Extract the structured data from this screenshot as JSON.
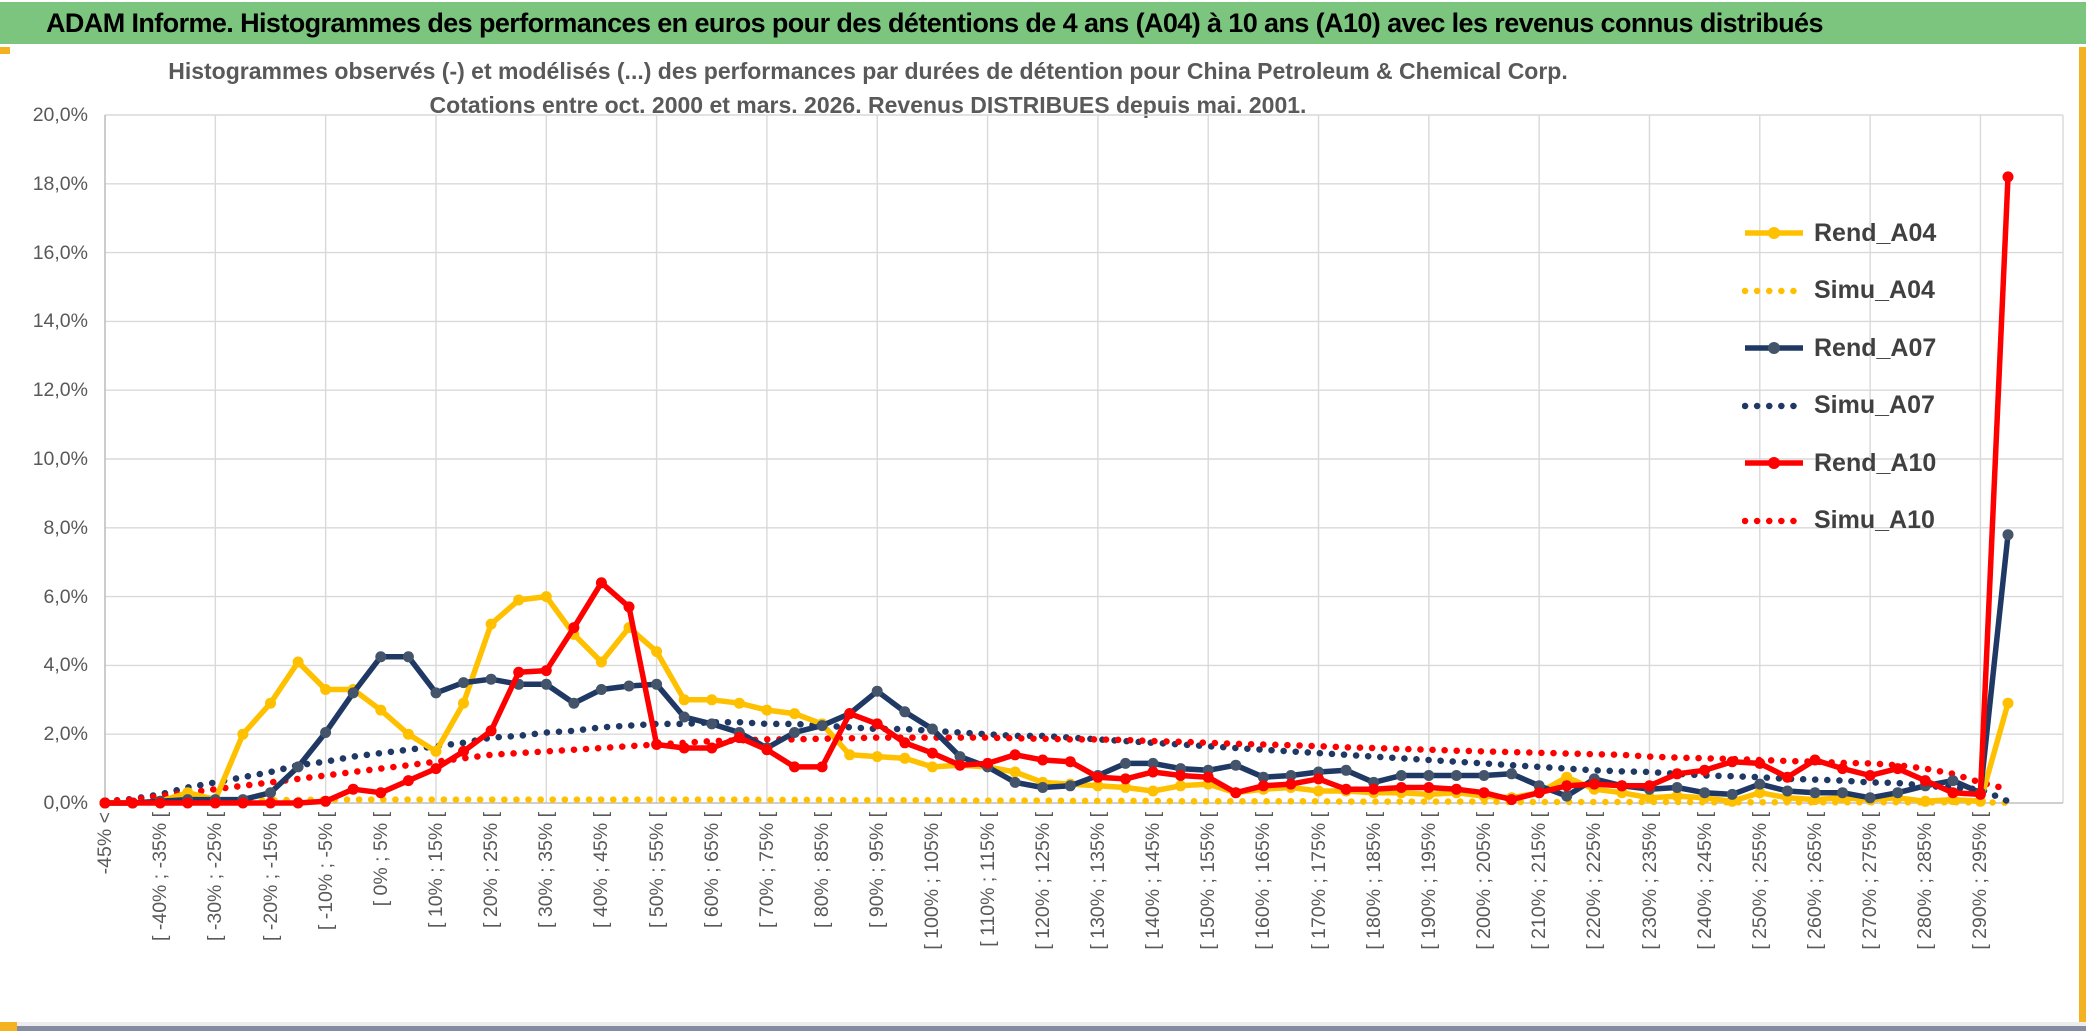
{
  "header": {
    "title": "ADAM Informe. Histogrammes des performances en euros pour des détentions de 4 ans (A04) à 10 ans (A10) avec les revenus connus distribués",
    "bg_color": "#7CC57E",
    "accent_color": "#F4B223",
    "bottom_bar_color": "#858CA0"
  },
  "chart_data": {
    "type": "line",
    "title_line1": "Histogrammes observés (-) et modélisés (...) des performances par durées de détention pour China Petroleum & Chemical Corp.",
    "title_line2": "Cotations entre oct. 2000 et mars. 2026. Revenus DISTRIBUES depuis mai. 2001.",
    "ylim": [
      0,
      20
    ],
    "ytick_step": 2,
    "yticks": [
      "0,0%",
      "2,0%",
      "4,0%",
      "6,0%",
      "8,0%",
      "10,0%",
      "12,0%",
      "14,0%",
      "16,0%",
      "18,0%",
      "20,0%"
    ],
    "grid": true,
    "legend_position": "right-top",
    "axis_text_color": "#595959",
    "grid_color": "#D9D9D9",
    "categories": [
      "-45% <",
      "",
      "[ -40% ; -35% [",
      "",
      "[ -30% ; -25% [",
      "",
      "[ -20% ; -15% [",
      "",
      "[ -10% ; -5% [",
      "",
      "[ 0% ; 5% [",
      "",
      "[ 10% ; 15% [",
      "",
      "[ 20% ; 25% [",
      "",
      "[ 30% ; 35% [",
      "",
      "[ 40% ; 45% [",
      "",
      "[ 50% ; 55% [",
      "",
      "[ 60% ; 65% [",
      "",
      "[ 70% ; 75% [",
      "",
      "[ 80% ; 85% [",
      "",
      "[ 90% ; 95% [",
      "",
      "[ 100% ; 105% [",
      "",
      "[ 110% ; 115% [",
      "",
      "[ 120% ; 125% [",
      "",
      "[ 130% ; 135% [",
      "",
      "[ 140% ; 145% [",
      "",
      "[ 150% ; 155% [",
      "",
      "[ 160% ; 165% [",
      "",
      "[ 170% ; 175% [",
      "",
      "[ 180% ; 185% [",
      "",
      "[ 190% ; 195% [",
      "",
      "[ 200% ; 205% [",
      "",
      "[ 210% ; 215% [",
      "",
      "[ 220% ; 225% [",
      "",
      "[ 230% ; 235% [",
      "",
      "[ 240% ; 245% [",
      "",
      "[ 250% ; 255% [",
      "",
      "[ 260% ; 265% [",
      "",
      "[ 270% ; 275% [",
      "",
      "[ 280% ; 285% [",
      "",
      "[ 290% ; 295% [",
      ""
    ],
    "series": [
      {
        "name": "Rend_A04",
        "style": "solid",
        "color": "#FFC000",
        "marker_color": "#FFC000",
        "values": [
          0,
          0,
          0.05,
          0.3,
          0.1,
          2.0,
          2.9,
          4.1,
          3.3,
          3.3,
          2.7,
          2.0,
          1.5,
          2.9,
          5.2,
          5.9,
          6.0,
          4.9,
          4.1,
          5.1,
          4.4,
          3.0,
          3.0,
          2.9,
          2.7,
          2.6,
          2.3,
          1.4,
          1.35,
          1.3,
          1.05,
          1.1,
          1.05,
          0.9,
          0.6,
          0.55,
          0.5,
          0.45,
          0.35,
          0.5,
          0.55,
          0.3,
          0.4,
          0.45,
          0.35,
          0.35,
          0.3,
          0.3,
          0.25,
          0.3,
          0.2,
          0.15,
          0.3,
          0.75,
          0.4,
          0.3,
          0.15,
          0.2,
          0.15,
          0.05,
          0.3,
          0.15,
          0.1,
          0.15,
          0.1,
          0.15,
          0.05,
          0.1,
          0.05,
          2.9
        ]
      },
      {
        "name": "Simu_A04",
        "style": "dotted",
        "color": "#FFC000",
        "values": [
          0.02,
          0.03,
          0.04,
          0.05,
          0.06,
          0.07,
          0.08,
          0.09,
          0.1,
          0.1,
          0.1,
          0.1,
          0.1,
          0.1,
          0.1,
          0.1,
          0.1,
          0.1,
          0.1,
          0.1,
          0.1,
          0.1,
          0.1,
          0.1,
          0.09,
          0.09,
          0.09,
          0.08,
          0.08,
          0.08,
          0.08,
          0.07,
          0.07,
          0.07,
          0.07,
          0.06,
          0.06,
          0.06,
          0.06,
          0.05,
          0.05,
          0.05,
          0.05,
          0.05,
          0.05,
          0.04,
          0.04,
          0.04,
          0.04,
          0.04,
          0.04,
          0.03,
          0.03,
          0.03,
          0.03,
          0.03,
          0.03,
          0.03,
          0.02,
          0.02,
          0.02,
          0.02,
          0.02,
          0.02,
          0.02,
          0.02,
          0.02,
          0.02,
          0.02,
          0.01
        ]
      },
      {
        "name": "Rend_A07",
        "style": "solid",
        "color": "#1F3864",
        "marker_color": "#44546A",
        "values": [
          0,
          0,
          0.05,
          0.1,
          0.1,
          0.1,
          0.3,
          1.05,
          2.05,
          3.2,
          4.25,
          4.25,
          3.2,
          3.5,
          3.6,
          3.45,
          3.45,
          2.9,
          3.3,
          3.4,
          3.45,
          2.5,
          2.3,
          2.05,
          1.6,
          2.05,
          2.25,
          2.6,
          3.25,
          2.65,
          2.15,
          1.35,
          1.05,
          0.6,
          0.45,
          0.5,
          0.8,
          1.15,
          1.15,
          1.0,
          0.95,
          1.1,
          0.75,
          0.8,
          0.9,
          0.95,
          0.6,
          0.8,
          0.8,
          0.8,
          0.8,
          0.85,
          0.5,
          0.2,
          0.7,
          0.5,
          0.4,
          0.45,
          0.3,
          0.25,
          0.55,
          0.35,
          0.3,
          0.3,
          0.15,
          0.3,
          0.5,
          0.65,
          0.3,
          7.8
        ]
      },
      {
        "name": "Simu_A07",
        "style": "dotted",
        "color": "#1F3864",
        "values": [
          0.05,
          0.12,
          0.25,
          0.45,
          0.6,
          0.75,
          0.9,
          1.1,
          1.2,
          1.35,
          1.45,
          1.55,
          1.65,
          1.75,
          1.9,
          1.95,
          2.05,
          2.1,
          2.2,
          2.25,
          2.3,
          2.3,
          2.35,
          2.35,
          2.3,
          2.3,
          2.25,
          2.2,
          2.15,
          2.15,
          2.1,
          2.05,
          2.0,
          1.95,
          1.95,
          1.9,
          1.85,
          1.8,
          1.75,
          1.7,
          1.65,
          1.6,
          1.55,
          1.5,
          1.45,
          1.4,
          1.35,
          1.3,
          1.25,
          1.2,
          1.15,
          1.1,
          1.05,
          1.0,
          0.95,
          0.92,
          0.9,
          0.85,
          0.8,
          0.78,
          0.75,
          0.7,
          0.68,
          0.65,
          0.6,
          0.58,
          0.5,
          0.45,
          0.4,
          0.05
        ]
      },
      {
        "name": "Rend_A10",
        "style": "solid",
        "color": "#FF0000",
        "marker_color": "#FF0000",
        "values": [
          0,
          0,
          0,
          0,
          0,
          0,
          0,
          0,
          0.05,
          0.4,
          0.3,
          0.65,
          1.0,
          1.5,
          2.1,
          3.8,
          3.85,
          5.1,
          6.4,
          5.7,
          1.7,
          1.6,
          1.6,
          1.9,
          1.55,
          1.05,
          1.05,
          2.6,
          2.3,
          1.75,
          1.45,
          1.1,
          1.15,
          1.4,
          1.25,
          1.2,
          0.75,
          0.7,
          0.9,
          0.8,
          0.75,
          0.3,
          0.5,
          0.55,
          0.7,
          0.4,
          0.4,
          0.45,
          0.45,
          0.4,
          0.3,
          0.1,
          0.3,
          0.5,
          0.55,
          0.5,
          0.5,
          0.85,
          0.95,
          1.2,
          1.15,
          0.75,
          1.25,
          1.0,
          0.8,
          1.0,
          0.65,
          0.3,
          0.25,
          18.2
        ]
      },
      {
        "name": "Simu_A10",
        "style": "dotted",
        "color": "#FF0000",
        "values": [
          0.05,
          0.1,
          0.2,
          0.3,
          0.4,
          0.5,
          0.6,
          0.7,
          0.8,
          0.9,
          1.0,
          1.1,
          1.2,
          1.3,
          1.4,
          1.45,
          1.5,
          1.55,
          1.6,
          1.65,
          1.7,
          1.75,
          1.8,
          1.82,
          1.85,
          1.85,
          1.87,
          1.88,
          1.9,
          1.9,
          1.9,
          1.9,
          1.9,
          1.88,
          1.87,
          1.85,
          1.85,
          1.83,
          1.8,
          1.78,
          1.75,
          1.72,
          1.7,
          1.68,
          1.65,
          1.62,
          1.6,
          1.57,
          1.55,
          1.52,
          1.5,
          1.48,
          1.46,
          1.44,
          1.42,
          1.4,
          1.35,
          1.32,
          1.3,
          1.28,
          1.25,
          1.22,
          1.2,
          1.17,
          1.15,
          1.1,
          1.0,
          0.85,
          0.6,
          0.4
        ]
      }
    ]
  }
}
